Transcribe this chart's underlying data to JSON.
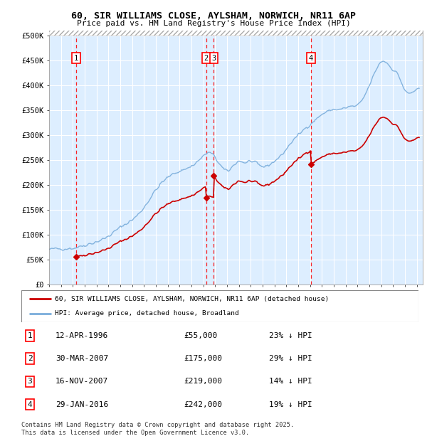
{
  "title": "60, SIR WILLIAMS CLOSE, AYLSHAM, NORWICH, NR11 6AP",
  "subtitle": "Price paid vs. HM Land Registry's House Price Index (HPI)",
  "ylim": [
    0,
    500000
  ],
  "yticks": [
    0,
    50000,
    100000,
    150000,
    200000,
    250000,
    300000,
    350000,
    400000,
    450000,
    500000
  ],
  "ytick_labels": [
    "£0",
    "£50K",
    "£100K",
    "£150K",
    "£200K",
    "£250K",
    "£300K",
    "£350K",
    "£400K",
    "£450K",
    "£500K"
  ],
  "background_color": "#ddeeff",
  "legend_entries": [
    "60, SIR WILLIAMS CLOSE, AYLSHAM, NORWICH, NR11 6AP (detached house)",
    "HPI: Average price, detached house, Broadland"
  ],
  "legend_colors": [
    "#cc0000",
    "#7aaddb"
  ],
  "sales": [
    {
      "num": 1,
      "price": 55000,
      "label": "1",
      "x": 1996.28
    },
    {
      "num": 2,
      "price": 175000,
      "label": "2",
      "x": 2007.25
    },
    {
      "num": 3,
      "price": 219000,
      "label": "3",
      "x": 2007.88
    },
    {
      "num": 4,
      "price": 242000,
      "label": "4",
      "x": 2016.08
    }
  ],
  "table_rows": [
    [
      "1",
      "12-APR-1996",
      "£55,000",
      "23% ↓ HPI"
    ],
    [
      "2",
      "30-MAR-2007",
      "£175,000",
      "29% ↓ HPI"
    ],
    [
      "3",
      "16-NOV-2007",
      "£219,000",
      "14% ↓ HPI"
    ],
    [
      "4",
      "29-JAN-2016",
      "£242,000",
      "19% ↓ HPI"
    ]
  ],
  "footer": "Contains HM Land Registry data © Crown copyright and database right 2025.\nThis data is licensed under the Open Government Licence v3.0.",
  "hpi_color": "#7aaddb",
  "price_color": "#cc0000"
}
